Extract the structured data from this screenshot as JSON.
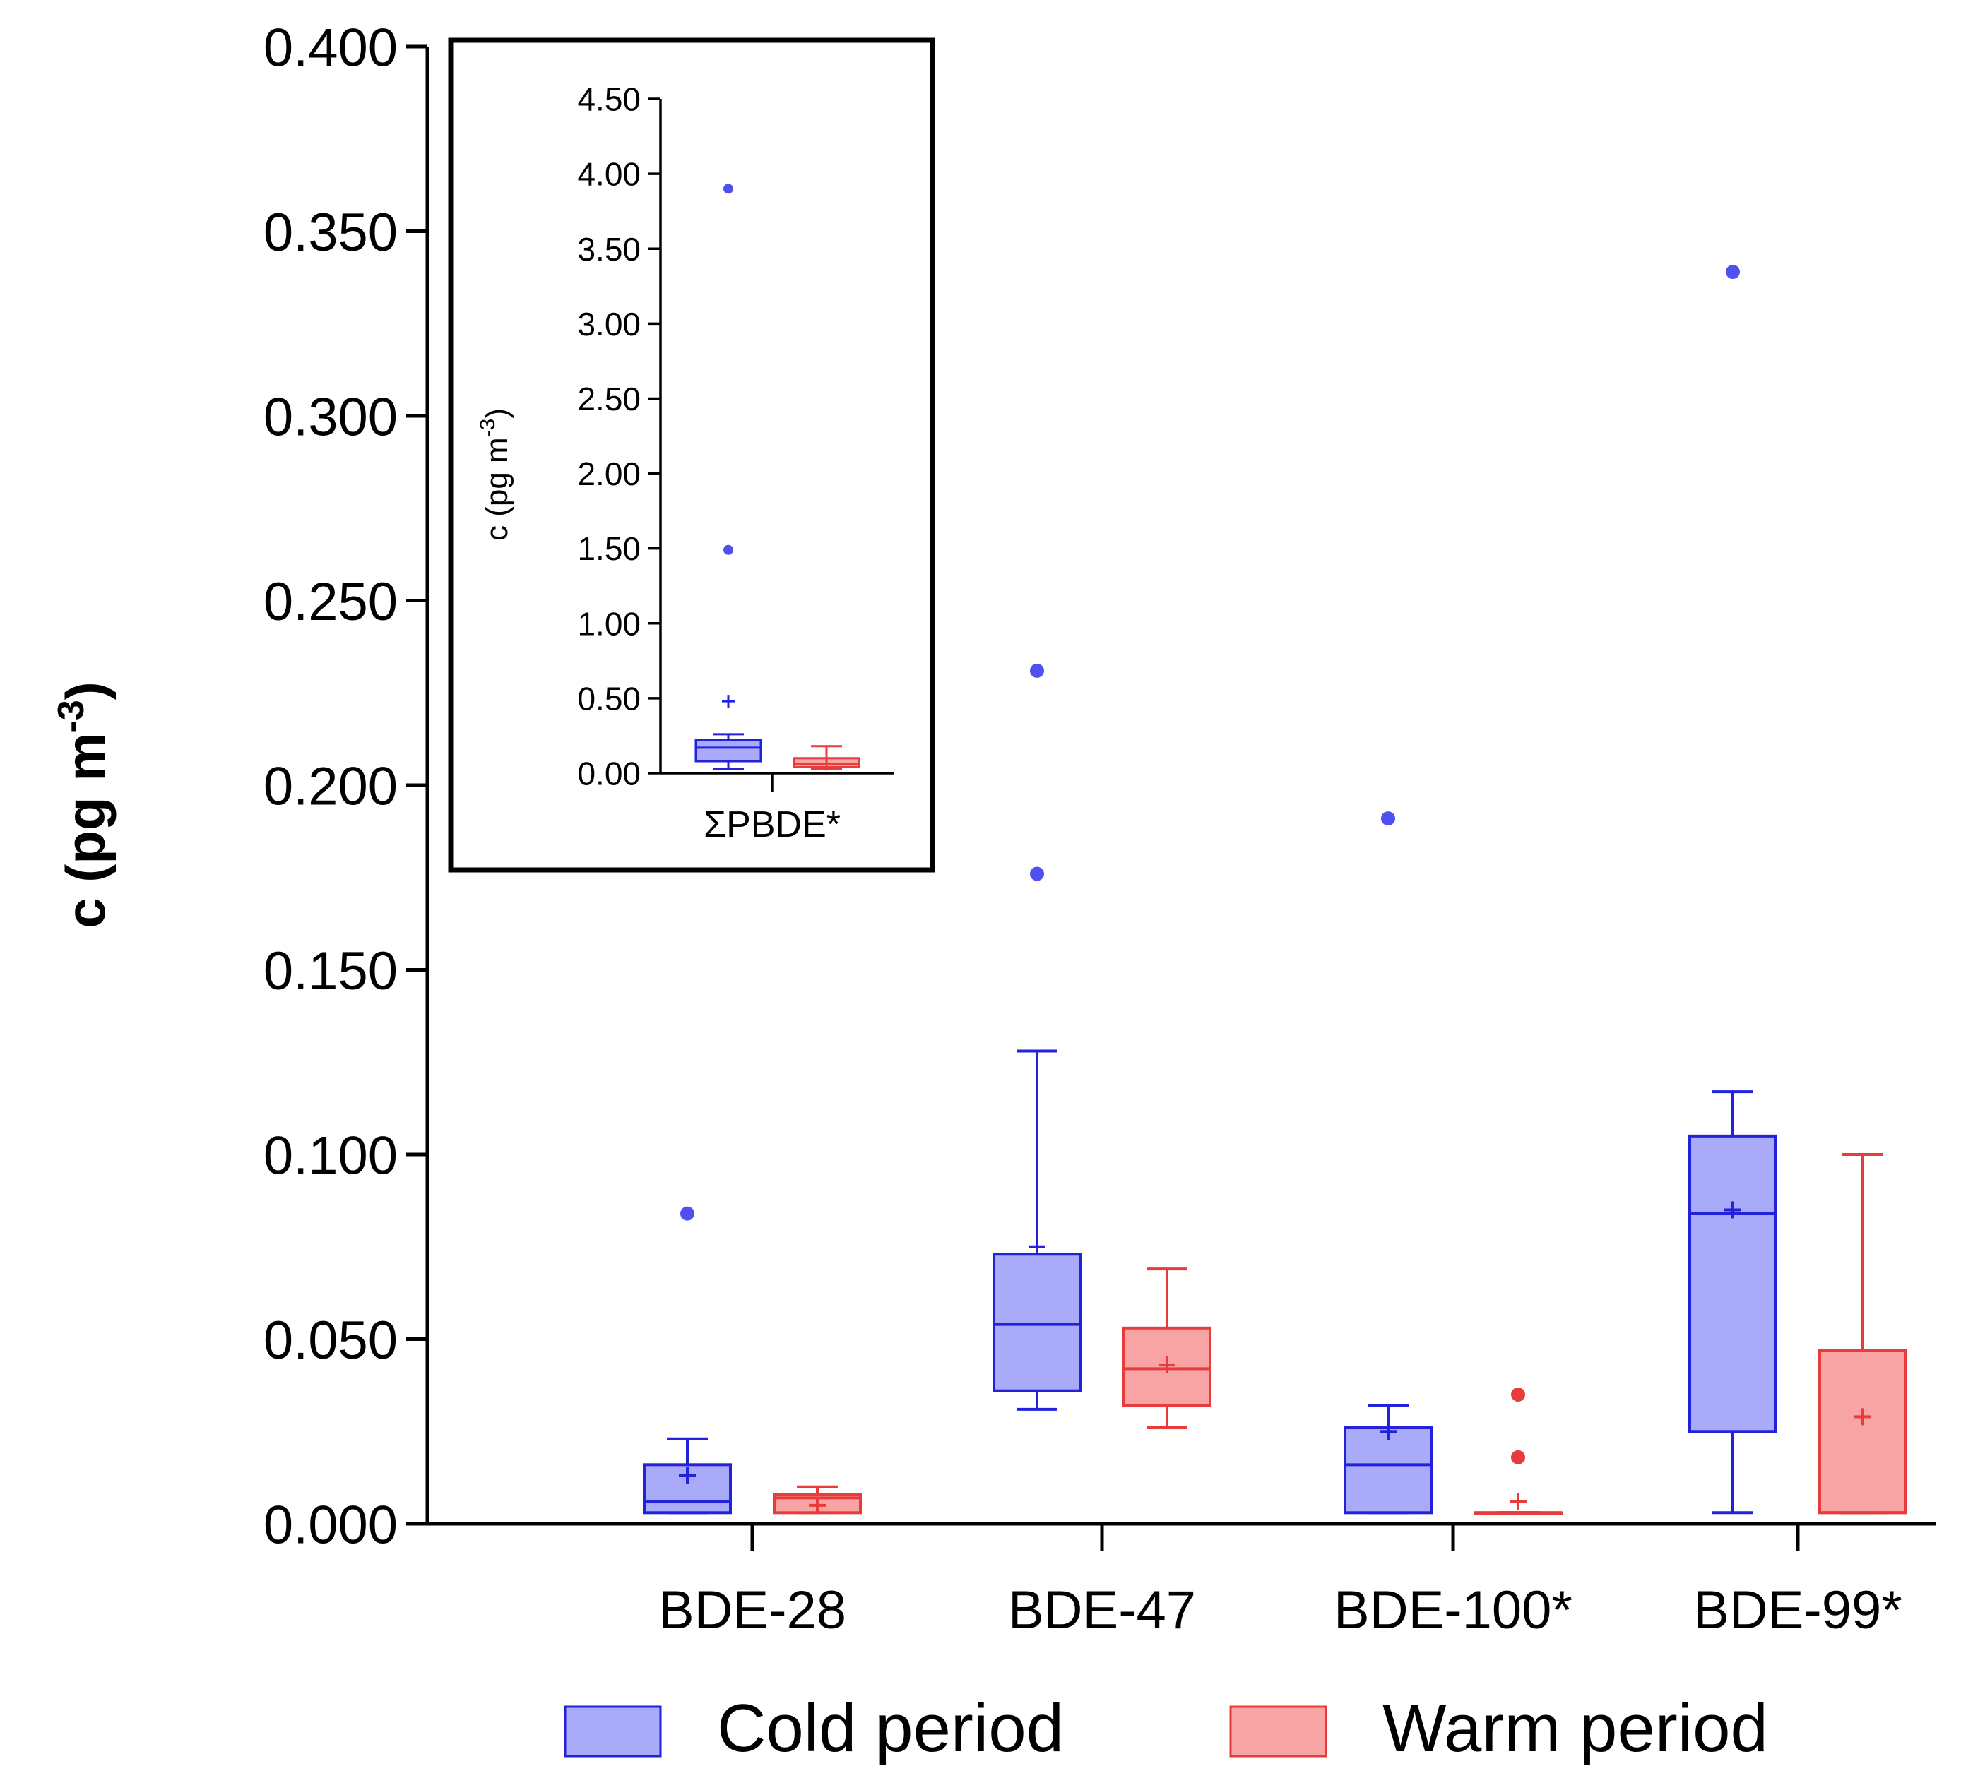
{
  "chart_data": [
    {
      "type": "box",
      "ylabel": "c (pg m",
      "ylabel_sup": "-3",
      "ylabel_close": ")",
      "ylim": [
        0,
        0.4
      ],
      "yticks": [
        "0.000",
        "0.050",
        "0.100",
        "0.150",
        "0.200",
        "0.250",
        "0.300",
        "0.350",
        "0.400"
      ],
      "categories": [
        "BDE-28",
        "BDE-47",
        "BDE-100*",
        "BDE-99*"
      ],
      "series": [
        {
          "name": "Cold period",
          "fill": "#a9aaf8",
          "stroke": "#2222dd",
          "boxes": [
            {
              "min": 0.003,
              "q1": 0.003,
              "median": 0.006,
              "q3": 0.016,
              "max": 0.023,
              "mean": 0.013,
              "outliers": [
                0.084
              ]
            },
            {
              "min": 0.031,
              "q1": 0.036,
              "median": 0.054,
              "q3": 0.073,
              "max": 0.128,
              "mean": 0.075,
              "outliers": [
                0.176,
                0.231
              ]
            },
            {
              "min": 0.003,
              "q1": 0.003,
              "median": 0.016,
              "q3": 0.026,
              "max": 0.032,
              "mean": 0.025,
              "outliers": [
                0.191
              ]
            },
            {
              "min": 0.003,
              "q1": 0.025,
              "median": 0.084,
              "q3": 0.105,
              "max": 0.117,
              "mean": 0.085,
              "outliers": [
                0.339
              ]
            }
          ]
        },
        {
          "name": "Warm period",
          "fill": "#f8a4a4",
          "stroke": "#e83c3c",
          "boxes": [
            {
              "min": 0.003,
              "q1": 0.003,
              "median": 0.007,
              "q3": 0.008,
              "max": 0.01,
              "mean": 0.005,
              "outliers": []
            },
            {
              "min": 0.026,
              "q1": 0.032,
              "median": 0.042,
              "q3": 0.053,
              "max": 0.069,
              "mean": 0.043,
              "outliers": []
            },
            {
              "min": 0.003,
              "q1": 0.003,
              "median": 0.003,
              "q3": 0.003,
              "max": 0.003,
              "mean": 0.006,
              "outliers": [
                0.018,
                0.035
              ]
            },
            {
              "min": 0.003,
              "q1": 0.003,
              "median": 0.003,
              "q3": 0.047,
              "max": 0.1,
              "mean": 0.029,
              "outliers": []
            }
          ]
        }
      ],
      "legend": [
        "Cold period",
        "Warm period"
      ],
      "legend_position": "bottom"
    },
    {
      "type": "box",
      "inset": true,
      "ylabel": "c (pg m",
      "ylabel_sup": "-3",
      "ylabel_close": ")",
      "ylim": [
        0,
        4.5
      ],
      "yticks": [
        "0.00",
        "0.50",
        "1.00",
        "1.50",
        "2.00",
        "2.50",
        "3.00",
        "3.50",
        "4.00",
        "4.50"
      ],
      "categories": [
        "ΣPBDE*"
      ],
      "series": [
        {
          "name": "Cold period",
          "boxes": [
            {
              "min": 0.03,
              "q1": 0.08,
              "median": 0.17,
              "q3": 0.22,
              "max": 0.26,
              "mean": 0.48,
              "outliers": [
                1.49,
                3.9
              ]
            }
          ]
        },
        {
          "name": "Warm period",
          "boxes": [
            {
              "min": 0.03,
              "q1": 0.04,
              "median": 0.06,
              "q3": 0.1,
              "max": 0.18,
              "mean": 0.06,
              "outliers": []
            }
          ]
        }
      ]
    }
  ]
}
